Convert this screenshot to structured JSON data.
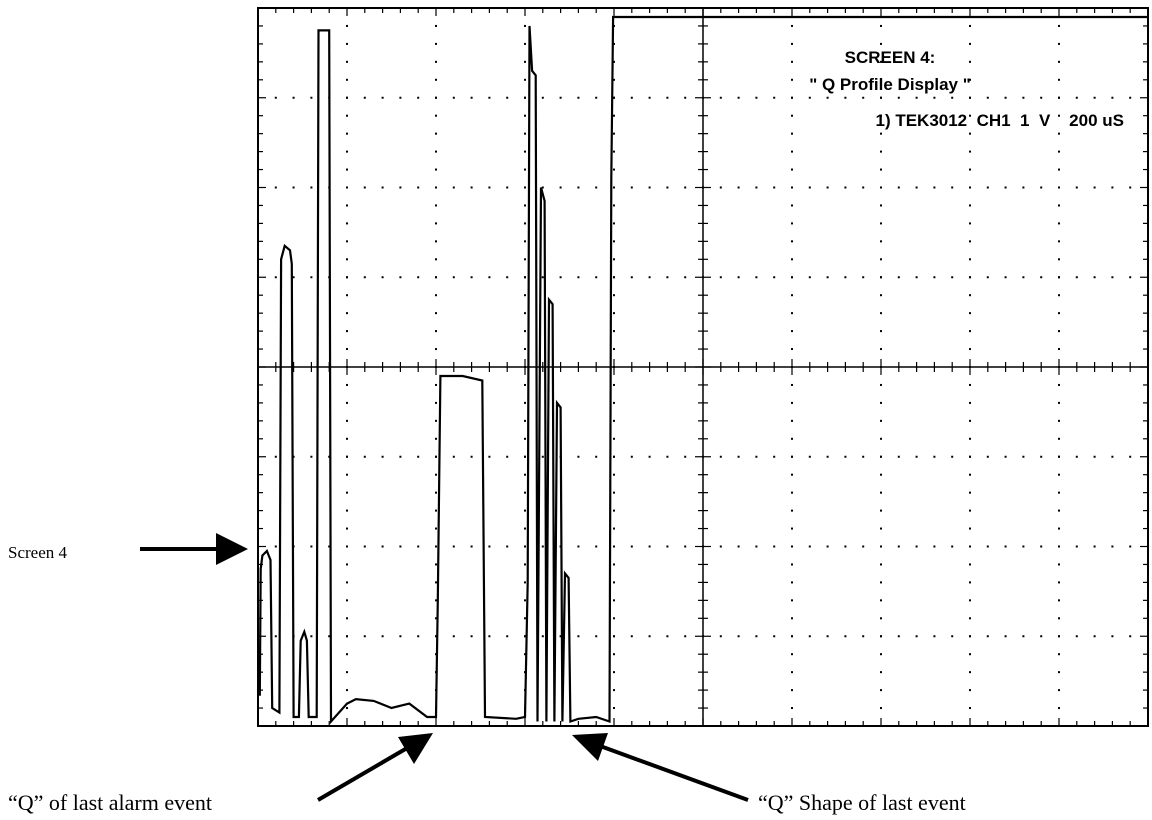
{
  "chart_data": {
    "type": "line",
    "title": "SCREEN 4:",
    "subtitle": "\" Q Profile Display \"",
    "settings_line": "1) TEK3012  CH1  1  V    200 uS",
    "xlim": [
      0,
      10
    ],
    "ylim": [
      0,
      8
    ],
    "x_divisions": 10,
    "y_divisions": 8,
    "grid": true,
    "series": [
      {
        "values": [
          [
            0.0,
            0.35
          ],
          [
            0.02,
            0.35
          ],
          [
            0.03,
            1.75
          ],
          [
            0.05,
            1.9
          ],
          [
            0.1,
            1.95
          ],
          [
            0.14,
            1.85
          ],
          [
            0.16,
            0.2
          ],
          [
            0.24,
            0.15
          ],
          [
            0.26,
            5.2
          ],
          [
            0.3,
            5.35
          ],
          [
            0.36,
            5.3
          ],
          [
            0.38,
            5.15
          ],
          [
            0.4,
            0.1
          ],
          [
            0.46,
            0.1
          ],
          [
            0.48,
            0.95
          ],
          [
            0.52,
            1.05
          ],
          [
            0.55,
            0.95
          ],
          [
            0.57,
            0.1
          ],
          [
            0.66,
            0.1
          ],
          [
            0.68,
            7.75
          ],
          [
            0.8,
            7.75
          ],
          [
            0.82,
            0.05
          ],
          [
            1.0,
            0.25
          ],
          [
            1.1,
            0.3
          ],
          [
            1.3,
            0.28
          ],
          [
            1.5,
            0.2
          ],
          [
            1.7,
            0.25
          ],
          [
            1.9,
            0.1
          ],
          [
            2.0,
            0.1
          ],
          [
            2.02,
            1.4
          ],
          [
            2.05,
            3.9
          ],
          [
            2.3,
            3.9
          ],
          [
            2.52,
            3.85
          ],
          [
            2.55,
            0.1
          ],
          [
            2.9,
            0.08
          ],
          [
            3.0,
            0.1
          ],
          [
            3.03,
            1.6
          ],
          [
            3.05,
            7.8
          ],
          [
            3.08,
            7.3
          ],
          [
            3.12,
            7.25
          ],
          [
            3.14,
            0.05
          ],
          [
            3.18,
            6.0
          ],
          [
            3.22,
            5.85
          ],
          [
            3.24,
            0.05
          ],
          [
            3.27,
            4.75
          ],
          [
            3.31,
            4.7
          ],
          [
            3.33,
            0.05
          ],
          [
            3.36,
            3.6
          ],
          [
            3.4,
            3.55
          ],
          [
            3.42,
            0.05
          ],
          [
            3.45,
            1.7
          ],
          [
            3.49,
            1.65
          ],
          [
            3.51,
            0.05
          ],
          [
            3.6,
            0.08
          ],
          [
            3.8,
            0.1
          ],
          [
            3.95,
            0.05
          ],
          [
            3.97,
            6.1
          ],
          [
            3.99,
            7.9
          ],
          [
            10.0,
            7.9
          ]
        ]
      }
    ]
  },
  "annotations": {
    "left_label": "Screen 4",
    "bottom_left_label": "“Q” of last alarm event",
    "bottom_right_label": "“Q” Shape of last event"
  }
}
